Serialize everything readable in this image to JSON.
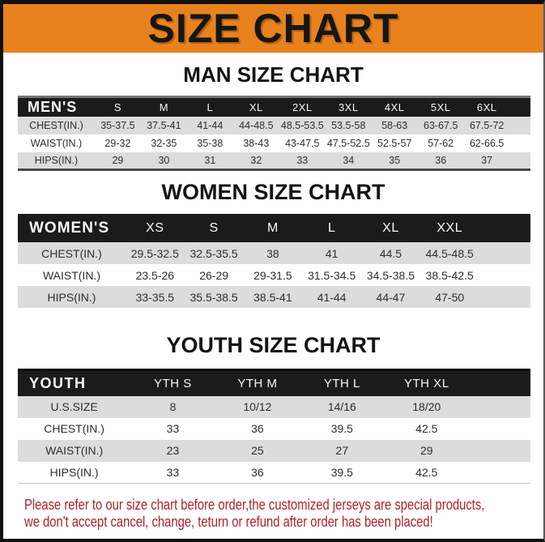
{
  "page": {
    "title": "SIZE CHART",
    "colors": {
      "banner_orange": "#E8821E",
      "header_black": "#1B1B1B",
      "row_gray": "#DCDCDC",
      "disclaimer_red": "#AE2329"
    }
  },
  "sections": [
    {
      "id": "man",
      "heading": "MAN SIZE CHART",
      "table": {
        "header": [
          "MEN'S",
          "S",
          "M",
          "L",
          "XL",
          "2XL",
          "3XL",
          "4XL",
          "5XL",
          "6XL"
        ],
        "rows": [
          {
            "label": "CHEST(IN.)",
            "values": [
              "35-37.5",
              "37.5-41",
              "41-44",
              "44-48.5",
              "48.5-53.5",
              "53.5-58",
              "58-63",
              "63-67.5",
              "67.5-72"
            ]
          },
          {
            "label": "WAIST(IN.)",
            "values": [
              "29-32",
              "32-35",
              "35-38",
              "38-43",
              "43-47.5",
              "47.5-52.5",
              "52.5-57",
              "57-62",
              "62-66.5"
            ]
          },
          {
            "label": "HIPS(IN.)",
            "values": [
              "29",
              "30",
              "31",
              "32",
              "33",
              "34",
              "35",
              "36",
              "37"
            ]
          }
        ]
      }
    },
    {
      "id": "women",
      "heading": "WOMEN SIZE CHART",
      "table": {
        "header": [
          "WOMEN'S",
          "XS",
          "S",
          "M",
          "L",
          "XL",
          "XXL"
        ],
        "rows": [
          {
            "label": "CHEST(IN.)",
            "values": [
              "29.5-32.5",
              "32.5-35.5",
              "38",
              "41",
              "44.5",
              "44.5-48.5"
            ]
          },
          {
            "label": "WAIST(IN.)",
            "values": [
              "23.5-26",
              "26-29",
              "29-31.5",
              "31.5-34.5",
              "34.5-38.5",
              "38.5-42.5"
            ]
          },
          {
            "label": "HIPS(IN.)",
            "values": [
              "33-35.5",
              "35.5-38.5",
              "38.5-41",
              "41-44",
              "44-47",
              "47-50"
            ]
          }
        ]
      }
    },
    {
      "id": "youth",
      "heading": "YOUTH SIZE CHART",
      "table": {
        "header": [
          "YOUTH",
          "YTH S",
          "YTH M",
          "YTH L",
          "YTH XL"
        ],
        "rows": [
          {
            "label": "U.S.SIZE",
            "values": [
              "8",
              "10/12",
              "14/16",
              "18/20"
            ]
          },
          {
            "label": "CHEST(IN.)",
            "values": [
              "33",
              "36",
              "39.5",
              "42.5"
            ]
          },
          {
            "label": "WAIST(IN.)",
            "values": [
              "23",
              "25",
              "27",
              "29"
            ]
          },
          {
            "label": "HIPS(IN.)",
            "values": [
              "33",
              "36",
              "39.5",
              "42.5"
            ]
          }
        ]
      }
    }
  ],
  "disclaimer": {
    "line1": "Please refer to our size chart before order,the customized jerseys are special products,",
    "line2": "we don't accept cancel, change, teturn or refund after order has been placed!"
  }
}
